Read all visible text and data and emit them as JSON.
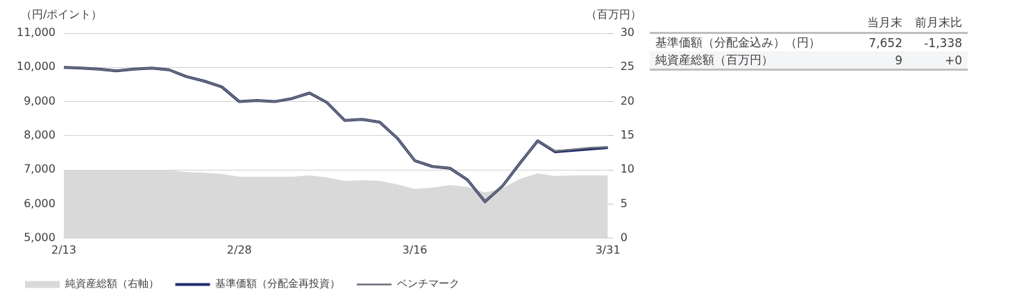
{
  "chart_data": [
    {
      "type": "line",
      "ylabel": "（円/ポイント）",
      "y2label": "（百万円）",
      "categories": [
        "2/13",
        null,
        null,
        null,
        null,
        null,
        null,
        null,
        null,
        null,
        "2/28",
        null,
        null,
        null,
        null,
        null,
        null,
        null,
        null,
        null,
        "3/16",
        null,
        null,
        null,
        null,
        null,
        null,
        null,
        null,
        null,
        null,
        "3/31"
      ],
      "series": [
        {
          "name": "純資産総額（右軸）",
          "type": "area",
          "axis": "y2",
          "color": "#d9d9d9",
          "values": [
            10,
            10,
            10,
            10,
            10,
            10,
            10,
            9.7,
            9.6,
            9.4,
            9,
            9,
            9,
            9,
            9.2,
            8.9,
            8.4,
            8.5,
            8.4,
            7.9,
            7.2,
            7.4,
            7.8,
            7.5,
            6.7,
            7.3,
            8.7,
            9.5,
            9.1,
            9.2,
            9.2,
            9.2
          ]
        },
        {
          "name": "基準価額（分配金再投資）",
          "type": "line",
          "color": "#1f2d6b",
          "values": [
            10000,
            9980,
            9950,
            9900,
            9950,
            9980,
            9930,
            9730,
            9600,
            9430,
            9000,
            9030,
            9000,
            9090,
            9250,
            8970,
            8450,
            8480,
            8400,
            7930,
            7270,
            7100,
            7050,
            6710,
            6070,
            6530,
            7200,
            7850,
            7530,
            7570,
            7610,
            7652
          ]
        },
        {
          "name": "ベンチマーク",
          "type": "line",
          "color": "#6b6e78",
          "values": [
            10000,
            9980,
            9950,
            9900,
            9950,
            9980,
            9930,
            9730,
            9600,
            9430,
            9000,
            9030,
            9000,
            9090,
            9250,
            8970,
            8450,
            8480,
            8400,
            7930,
            7270,
            7100,
            7050,
            6710,
            6070,
            6530,
            7200,
            7850,
            7550,
            7600,
            7650,
            7670
          ]
        }
      ],
      "ylim": [
        5000,
        11000
      ],
      "yticks": [
        {
          "value": 5000,
          "label": "5,000"
        },
        {
          "value": 6000,
          "label": "6,000"
        },
        {
          "value": 7000,
          "label": "7,000"
        },
        {
          "value": 8000,
          "label": "8,000"
        },
        {
          "value": 9000,
          "label": "9,000"
        },
        {
          "value": 10000,
          "label": "10,000"
        },
        {
          "value": 11000,
          "label": "11,000"
        }
      ],
      "y2lim": [
        0,
        30
      ],
      "y2ticks": [
        0,
        5,
        10,
        15,
        20,
        25,
        30
      ],
      "grid": "y",
      "legend": "bottom",
      "line_style": "solid"
    },
    {
      "type": "other",
      "categories": [
        "当月末",
        "前月末比"
      ],
      "y_categories": [
        "基準価額（分配金込み）（円）",
        "純資産総額（百万円）"
      ],
      "cell_labels": [
        [
          "7,652",
          "-1,338"
        ],
        [
          "9",
          "+0"
        ]
      ]
    }
  ]
}
